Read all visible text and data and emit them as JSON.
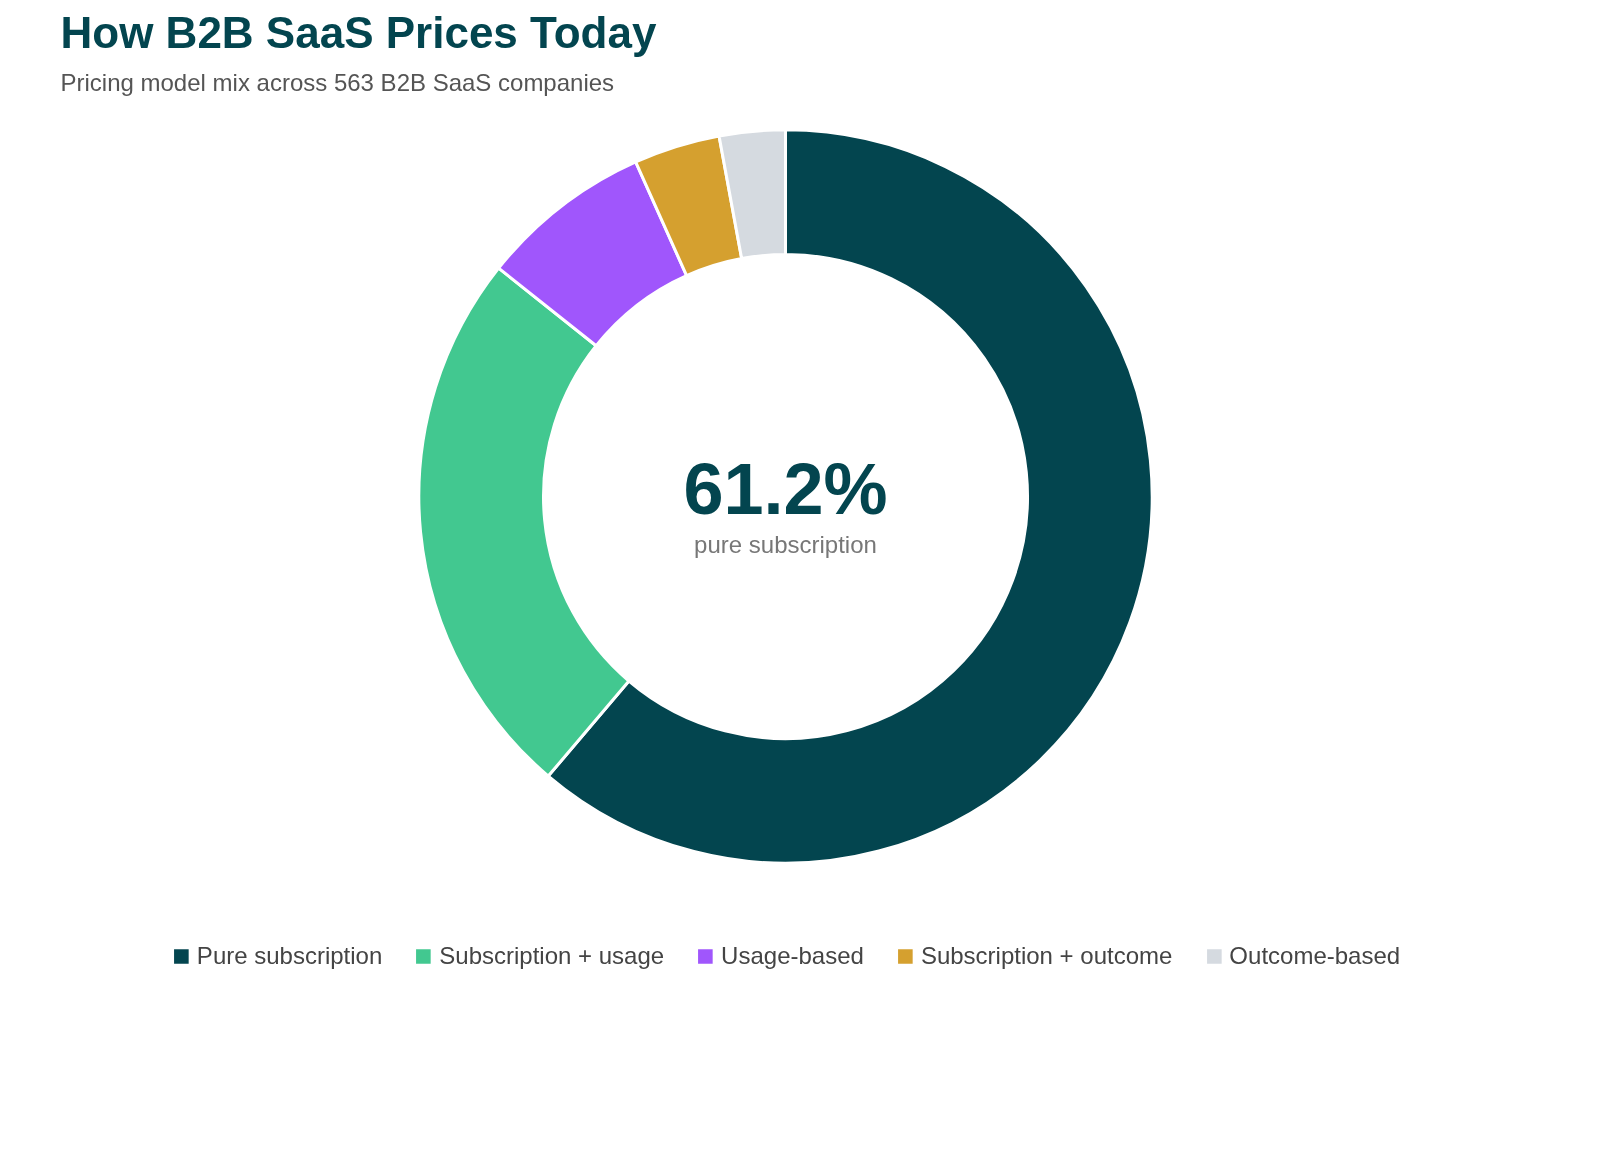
{
  "chart_data": {
    "type": "donut",
    "title": "How B2B SaaS Prices Today",
    "subtitle": "Pricing model mix across 563 B2B SaaS companies",
    "categories": [
      "Pure subscription",
      "Subscription + usage",
      "Usage-based",
      "Subscription + outcome",
      "Outcome-based"
    ],
    "values": [
      61.2,
      24.5,
      7.6,
      3.8,
      2.9
    ],
    "colors": [
      "#03454f",
      "#42c890",
      "#a056fc",
      "#d5a02f",
      "#d5dae0"
    ],
    "annotations": [
      "61.2%",
      "pure subscription"
    ],
    "legend": "bottom"
  }
}
